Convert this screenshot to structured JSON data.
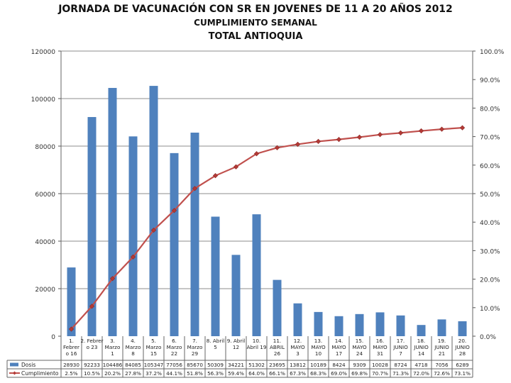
{
  "title": "JORNADA DE VACUNACIÓN CON SR EN JOVENES DE 11 A 20 AÑOS 2012",
  "subtitle": "CUMPLIMIENTO SEMANAL",
  "subtitle2": "TOTAL ANTIOQUIA",
  "colors": {
    "bar": "#4f81bd",
    "line": "#c0504d",
    "line_marker": "#b33a36",
    "grid": "#8c8c8c"
  },
  "chart_data": {
    "type": "bar+line",
    "categories": [
      [
        "1.",
        "Febrer",
        "o 16"
      ],
      [
        "2. Febrer",
        "o 23"
      ],
      [
        "3.",
        "Marzo",
        "1"
      ],
      [
        "4.",
        "Marzo",
        "8"
      ],
      [
        "5.",
        "Marzo",
        "15"
      ],
      [
        "6.",
        "Marzo",
        "22"
      ],
      [
        "7.",
        "Marzo",
        "29"
      ],
      [
        "8. Abril",
        "5"
      ],
      [
        "9. Abril",
        "12"
      ],
      [
        "10.",
        "Abril 19"
      ],
      [
        "11.",
        "ABRIL",
        "26"
      ],
      [
        "12.",
        "MAYO",
        "3"
      ],
      [
        "13.",
        "MAYO",
        "10"
      ],
      [
        "14.",
        "MAYO",
        "17"
      ],
      [
        "15.",
        "MAYO",
        "24"
      ],
      [
        "16.",
        "MAYO",
        "31"
      ],
      [
        "17.",
        "JUNIO",
        "7"
      ],
      [
        "18.",
        "JUNIO",
        "14"
      ],
      [
        "19.",
        "JUNIO",
        "21"
      ],
      [
        "20.",
        "JUNIO",
        "28"
      ]
    ],
    "series": [
      {
        "name": "Dosis",
        "type": "bar",
        "axis": "left",
        "values": [
          28930,
          92233,
          104486,
          84085,
          105347,
          77056,
          85670,
          50309,
          34221,
          51302,
          23695,
          13812,
          10189,
          8424,
          9309,
          10028,
          8724,
          4718,
          7056,
          6289
        ],
        "labels": [
          "28930",
          "92233",
          "104486",
          "84085",
          "105347",
          "77056",
          "85670",
          "50309",
          "34221",
          "51302",
          "23695",
          "13812",
          "10189",
          "8424",
          "9309",
          "10028",
          "8724",
          "4718",
          "7056",
          "6289"
        ]
      },
      {
        "name": "Cumplimiento",
        "type": "line",
        "axis": "right",
        "values": [
          2.5,
          10.5,
          20.2,
          27.8,
          37.2,
          44.1,
          51.8,
          56.3,
          59.4,
          64.0,
          66.1,
          67.3,
          68.3,
          69.0,
          69.8,
          70.7,
          71.3,
          72.0,
          72.6,
          73.1
        ],
        "labels": [
          "2.5%",
          "10.5%",
          "20.2%",
          "27.8%",
          "37.2%",
          "44.1%",
          "51.8%",
          "56.3%",
          "59.4%",
          "64.0%",
          "66.1%",
          "67.3%",
          "68.3%",
          "69.0%",
          "69.8%",
          "70.7%",
          "71.3%",
          "72.0%",
          "72.6%",
          "73.1%"
        ]
      }
    ],
    "y_left": {
      "ylim": [
        0,
        120000
      ],
      "ticks": [
        "0",
        "20000",
        "40000",
        "60000",
        "80000",
        "100000",
        "120000"
      ]
    },
    "y_right": {
      "ylim": [
        0,
        100
      ],
      "ticks": [
        "0.0%",
        "10.0%",
        "20.0%",
        "30.0%",
        "40.0%",
        "50.0%",
        "60.0%",
        "70.0%",
        "80.0%",
        "90.0%",
        "100.0%"
      ]
    },
    "grid": true,
    "legend": "data-table"
  }
}
